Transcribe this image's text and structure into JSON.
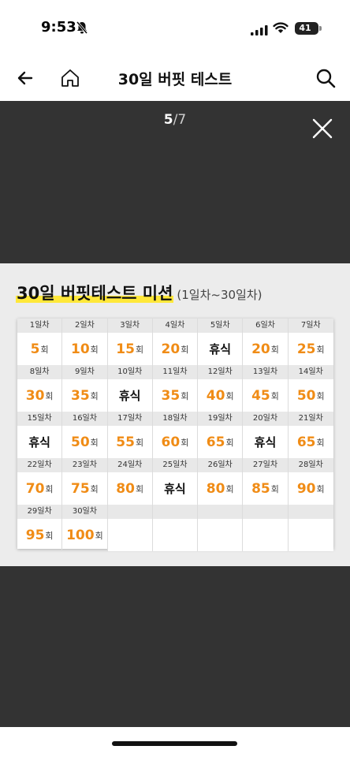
{
  "status_bar": {
    "time": "9:53",
    "battery": "41"
  },
  "header": {
    "title": "30일 버핏 테스트"
  },
  "viewer": {
    "current": "5",
    "total": "/7"
  },
  "mission": {
    "title": "30일 버핏테스트 미션",
    "subtitle": "(1일차~30일차)",
    "unit": "회",
    "rest_label": "휴식",
    "weeks": [
      {
        "days": [
          "1일차",
          "2일차",
          "3일차",
          "4일차",
          "5일차",
          "6일차",
          "7일차"
        ],
        "values": [
          "5",
          "10",
          "15",
          "20",
          "휴식",
          "20",
          "25"
        ]
      },
      {
        "days": [
          "8일차",
          "9일차",
          "10일차",
          "11일차",
          "12일차",
          "13일차",
          "14일차"
        ],
        "values": [
          "30",
          "35",
          "휴식",
          "35",
          "40",
          "45",
          "50"
        ]
      },
      {
        "days": [
          "15일차",
          "16일차",
          "17일차",
          "18일차",
          "19일차",
          "20일차",
          "21일차"
        ],
        "values": [
          "휴식",
          "50",
          "55",
          "60",
          "65",
          "휴식",
          "65"
        ]
      },
      {
        "days": [
          "22일차",
          "23일차",
          "24일차",
          "25일차",
          "26일차",
          "27일차",
          "28일차"
        ],
        "values": [
          "70",
          "75",
          "80",
          "휴식",
          "80",
          "85",
          "90"
        ]
      },
      {
        "days": [
          "29일차",
          "30일차"
        ],
        "values": [
          "95",
          "100"
        ]
      }
    ]
  }
}
